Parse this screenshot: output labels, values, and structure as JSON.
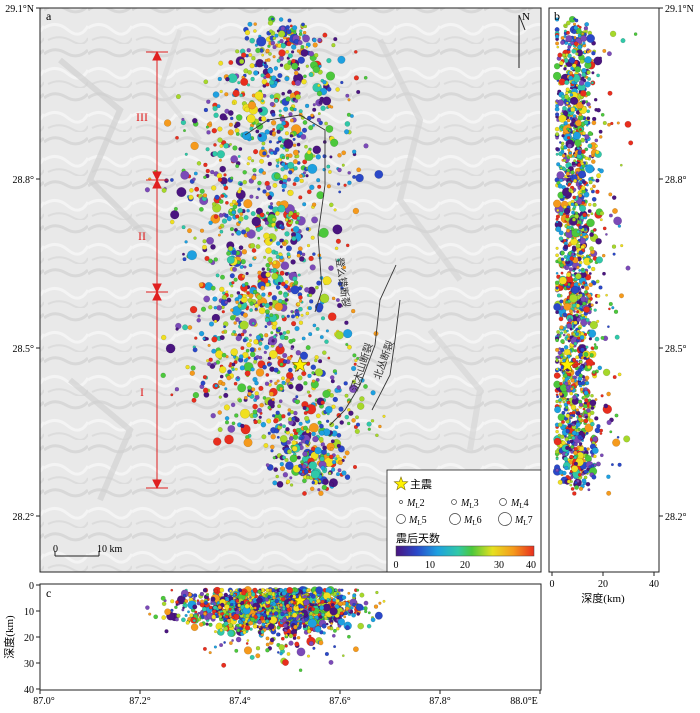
{
  "panel_a": {
    "label": "a",
    "north": "N",
    "lat_ticks": [
      "29.1°N",
      "28.8°",
      "28.5°",
      "28.2°"
    ],
    "scale": {
      "zero": "0",
      "ten": "10 km"
    },
    "segments": [
      "III",
      "II",
      "I"
    ],
    "faults": [
      "登么错断裂",
      "沉木山断裂",
      "北丛断裂"
    ],
    "legend": {
      "mainshock": "主震",
      "mags": [
        {
          "pre": "M",
          "sub": "L",
          "val": "2"
        },
        {
          "pre": "M",
          "sub": "L",
          "val": "3"
        },
        {
          "pre": "M",
          "sub": "L",
          "val": "4"
        },
        {
          "pre": "M",
          "sub": "L",
          "val": "5"
        },
        {
          "pre": "M",
          "sub": "L",
          "val": "6"
        },
        {
          "pre": "M",
          "sub": "L",
          "val": "7"
        }
      ],
      "colorbar_title": "震后天数",
      "colorbar_ticks": [
        "0",
        "10",
        "20",
        "30",
        "40"
      ],
      "colorbar_range": [
        0,
        40
      ],
      "colors": [
        "#4a1580",
        "#7b4ab8",
        "#2a48c8",
        "#1ea0e0",
        "#30c8a8",
        "#4cc83c",
        "#a6d82a",
        "#f0e020",
        "#f59a1c",
        "#e82e1e"
      ]
    }
  },
  "panel_b": {
    "label": "b",
    "lat_ticks": [
      "29.1°N",
      "28.8°",
      "28.5°",
      "28.2°"
    ],
    "x_ticks": [
      "0",
      "20",
      "40"
    ],
    "x_label": "深度(km)"
  },
  "panel_c": {
    "label": "c",
    "y_ticks": [
      "0",
      "10",
      "20",
      "30",
      "40"
    ],
    "y_label": "深度(km)",
    "x_ticks": [
      "87.0°",
      "87.2°",
      "87.4°",
      "87.6°",
      "87.8°",
      "88.0°E"
    ]
  },
  "mainshock": {
    "lon": 87.52,
    "lat": 28.47,
    "depth_km": 6
  }
}
